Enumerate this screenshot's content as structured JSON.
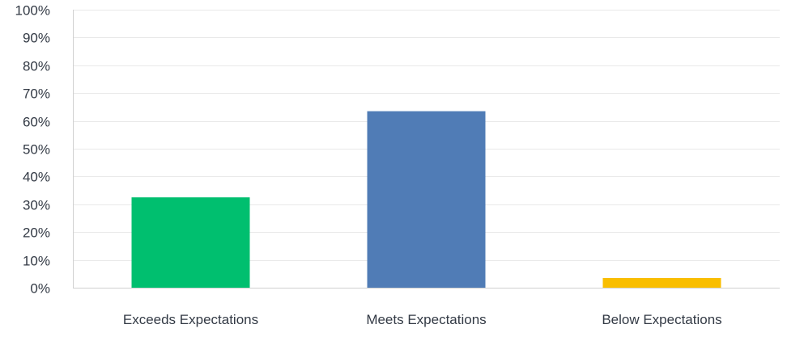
{
  "chart_data": {
    "type": "bar",
    "title": "",
    "xlabel": "",
    "ylabel": "",
    "categories": [
      "Exceeds Expectations",
      "Meets Expectations",
      "Below Expectations"
    ],
    "values": [
      32.5,
      63.5,
      3.5
    ],
    "colors": [
      "#00bf6f",
      "#507cb6",
      "#f9be00"
    ],
    "ylim": [
      0,
      100
    ],
    "yticks": [
      0,
      10,
      20,
      30,
      40,
      50,
      60,
      70,
      80,
      90,
      100
    ],
    "ytick_labels": [
      "0%",
      "10%",
      "20%",
      "30%",
      "40%",
      "50%",
      "60%",
      "70%",
      "80%",
      "90%",
      "100%"
    ],
    "grid": true,
    "legend": "none",
    "gridline_color": "#e9e9e9"
  }
}
